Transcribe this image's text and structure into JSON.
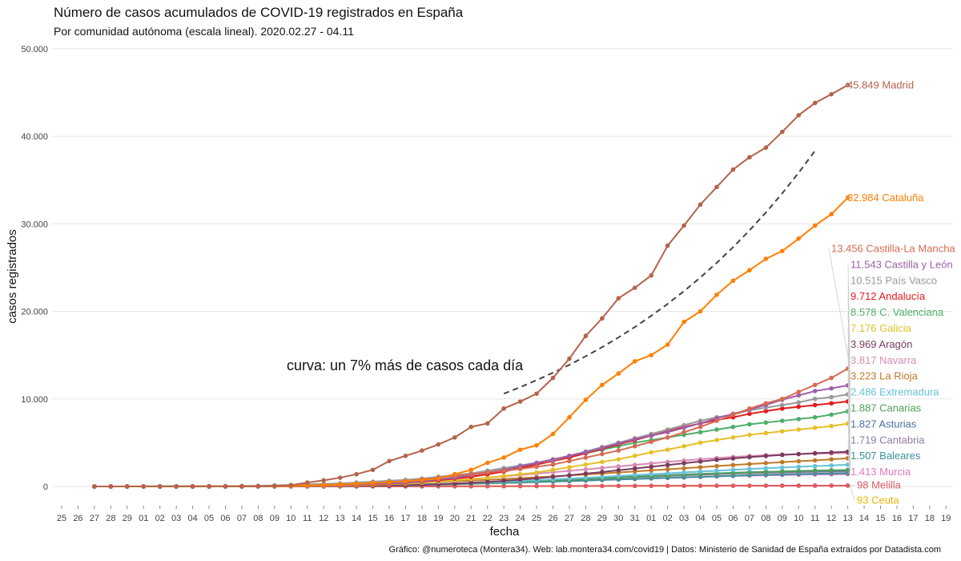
{
  "chart_data": {
    "type": "line",
    "title": "Número de casos acumulados de COVID-19 registrados en España",
    "subtitle": "Por comunidad autónoma (escala lineal). 2020.02.27 - 04.11",
    "xlabel": "fecha",
    "ylabel": "casos registrados",
    "caption": "Gráfico: @numeroteca (Montera34). Web: lab.montera34.com/covid19 | Datos: Ministerio de Sanidad de España extraídos por Datadista.com",
    "annotation": "curva: un 7% más de casos cada día",
    "x_dates": [
      "2020-02-25",
      "2020-02-26",
      "2020-02-27",
      "2020-02-28",
      "2020-02-29",
      "2020-03-01",
      "2020-03-02",
      "2020-03-03",
      "2020-03-04",
      "2020-03-05",
      "2020-03-06",
      "2020-03-07",
      "2020-03-08",
      "2020-03-09",
      "2020-03-10",
      "2020-03-11",
      "2020-03-12",
      "2020-03-13",
      "2020-03-14",
      "2020-03-15",
      "2020-03-16",
      "2020-03-17",
      "2020-03-18",
      "2020-03-19",
      "2020-03-20",
      "2020-03-21",
      "2020-03-22",
      "2020-03-23",
      "2020-03-24",
      "2020-03-25",
      "2020-03-26",
      "2020-03-27",
      "2020-03-28",
      "2020-03-29",
      "2020-03-30",
      "2020-03-31",
      "2020-04-01",
      "2020-04-02",
      "2020-04-03",
      "2020-04-04",
      "2020-04-05",
      "2020-04-06",
      "2020-04-07",
      "2020-04-08",
      "2020-04-09",
      "2020-04-10",
      "2020-04-11",
      "2020-04-12",
      "2020-04-13",
      "2020-04-14",
      "2020-04-15",
      "2020-04-16",
      "2020-04-17",
      "2020-04-18",
      "2020-04-19"
    ],
    "x_tick_labels": [
      "25",
      "26",
      "27",
      "28",
      "29",
      "01",
      "02",
      "03",
      "04",
      "05",
      "06",
      "07",
      "08",
      "09",
      "10",
      "11",
      "12",
      "13",
      "14",
      "15",
      "16",
      "17",
      "18",
      "19",
      "20",
      "21",
      "22",
      "23",
      "24",
      "25",
      "26",
      "27",
      "28",
      "29",
      "30",
      "31",
      "01",
      "02",
      "03",
      "04",
      "05",
      "06",
      "07",
      "08",
      "09",
      "10",
      "11",
      "12",
      "13",
      "14",
      "15",
      "16",
      "17",
      "18",
      "19"
    ],
    "y_ticks": [
      0,
      10000,
      20000,
      30000,
      40000,
      50000
    ],
    "y_tick_labels": [
      "0",
      "10.000",
      "20.000",
      "30.000",
      "40.000",
      "50.000"
    ],
    "ylim": [
      -1200,
      51000
    ],
    "grid": true,
    "legend": "direct labels at line ends (right)",
    "series_start_date": "2020-02-27",
    "series": [
      {
        "name": "Madrid",
        "label": "45.849 Madrid",
        "color": "#b5634b",
        "values": [
          1,
          5,
          6,
          6,
          8,
          10,
          12,
          15,
          17,
          29,
          40,
          80,
          150,
          450,
          700,
          1000,
          1400,
          1900,
          2900,
          3500,
          4100,
          4800,
          5600,
          6800,
          7200,
          8900,
          9700,
          10600,
          12400,
          14600,
          17200,
          19200,
          21500,
          22700,
          24100,
          27500,
          29800,
          32200,
          34200,
          36200,
          37600,
          38700,
          40500,
          42400,
          43800,
          44800,
          45849
        ]
      },
      {
        "name": "Cataluña",
        "label": "32.984 Cataluña",
        "color": "#ff7f00",
        "values": [
          1,
          2,
          3,
          4,
          5,
          5,
          6,
          10,
          12,
          18,
          30,
          50,
          75,
          120,
          170,
          240,
          300,
          400,
          500,
          600,
          750,
          900,
          1400,
          1900,
          2700,
          3300,
          4200,
          4700,
          6000,
          7900,
          9900,
          11600,
          12900,
          14300,
          15000,
          16200,
          18800,
          20000,
          21900,
          23500,
          24700,
          26000,
          26900,
          28300,
          29800,
          31100,
          32984
        ]
      },
      {
        "name": "Castilla-La Mancha",
        "label": "13.456 Castilla-La Mancha",
        "color": "#d86a52",
        "values": [
          0,
          0,
          0,
          0,
          0,
          1,
          2,
          3,
          5,
          8,
          12,
          20,
          40,
          70,
          120,
          200,
          280,
          390,
          500,
          600,
          800,
          1000,
          1200,
          1400,
          1600,
          1800,
          2000,
          2250,
          2500,
          2900,
          3300,
          3700,
          4100,
          4600,
          5100,
          5600,
          6200,
          6800,
          7500,
          8200,
          8900,
          9500,
          10000,
          10800,
          11600,
          12400,
          13456
        ]
      },
      {
        "name": "Castilla y León",
        "label": "11.543 Castilla y León",
        "color": "#a05fa6",
        "values": [
          0,
          0,
          0,
          0,
          0,
          0,
          1,
          2,
          4,
          6,
          10,
          15,
          30,
          50,
          90,
          150,
          220,
          300,
          380,
          450,
          600,
          800,
          1000,
          1300,
          1600,
          1900,
          2300,
          2700,
          3100,
          3500,
          3900,
          4400,
          4900,
          5400,
          5800,
          6200,
          6700,
          7200,
          7800,
          8300,
          8800,
          9300,
          9900,
          10400,
          10900,
          11200,
          11543
        ]
      },
      {
        "name": "País Vasco",
        "label": "10.515 País Vasco",
        "color": "#999999",
        "values": [
          0,
          0,
          0,
          2,
          4,
          6,
          10,
          15,
          30,
          50,
          80,
          120,
          170,
          250,
          300,
          350,
          450,
          550,
          650,
          750,
          900,
          1100,
          1300,
          1500,
          1800,
          2100,
          2400,
          2700,
          3000,
          3500,
          4000,
          4500,
          5000,
          5500,
          6000,
          6500,
          7000,
          7500,
          7900,
          8200,
          8700,
          9000,
          9300,
          9600,
          10000,
          10200,
          10515
        ]
      },
      {
        "name": "Andalucía",
        "label": "9.712 Andalucía",
        "color": "#e41a1c",
        "values": [
          0,
          0,
          0,
          0,
          0,
          1,
          2,
          5,
          10,
          15,
          20,
          30,
          50,
          80,
          110,
          150,
          200,
          260,
          330,
          420,
          550,
          700,
          900,
          1100,
          1400,
          1700,
          2100,
          2500,
          2900,
          3300,
          3800,
          4300,
          4800,
          5300,
          5800,
          6300,
          6800,
          7200,
          7600,
          7900,
          8300,
          8600,
          8900,
          9100,
          9300,
          9500,
          9712
        ]
      },
      {
        "name": "C. Valenciana",
        "label": "8.578 C. Valenciana",
        "color": "#4daf6a",
        "values": [
          1,
          2,
          3,
          5,
          7,
          10,
          15,
          20,
          25,
          30,
          40,
          50,
          80,
          110,
          150,
          200,
          250,
          350,
          500,
          650,
          800,
          1000,
          1200,
          1400,
          1600,
          1900,
          2200,
          2600,
          3000,
          3400,
          3800,
          4200,
          4600,
          5000,
          5300,
          5600,
          5900,
          6200,
          6500,
          6800,
          7100,
          7300,
          7500,
          7700,
          7900,
          8200,
          8578
        ]
      },
      {
        "name": "Galicia",
        "label": "7.176 Galicia",
        "color": "#e5c02a",
        "values": [
          0,
          0,
          0,
          0,
          0,
          0,
          1,
          2,
          3,
          5,
          8,
          12,
          20,
          40,
          60,
          90,
          130,
          180,
          250,
          330,
          420,
          550,
          700,
          850,
          1000,
          1200,
          1400,
          1600,
          1900,
          2200,
          2500,
          2800,
          3100,
          3500,
          3900,
          4200,
          4600,
          5000,
          5300,
          5600,
          5900,
          6100,
          6300,
          6500,
          6700,
          6900,
          7176
        ]
      },
      {
        "name": "Aragón",
        "label": "3.969 Aragón",
        "color": "#7a3b5e",
        "values": [
          0,
          0,
          0,
          0,
          0,
          1,
          1,
          2,
          2,
          3,
          5,
          8,
          12,
          20,
          30,
          45,
          60,
          80,
          110,
          150,
          200,
          260,
          330,
          420,
          520,
          640,
          780,
          930,
          1100,
          1280,
          1470,
          1650,
          1850,
          2050,
          2250,
          2450,
          2650,
          2850,
          3050,
          3200,
          3350,
          3480,
          3600,
          3700,
          3800,
          3880,
          3969
        ]
      },
      {
        "name": "Navarra",
        "label": "3.817 Navarra",
        "color": "#d98cb3",
        "values": [
          0,
          0,
          0,
          1,
          2,
          3,
          5,
          8,
          12,
          18,
          25,
          35,
          50,
          70,
          100,
          140,
          190,
          250,
          320,
          400,
          500,
          610,
          730,
          860,
          1000,
          1150,
          1300,
          1460,
          1620,
          1780,
          1950,
          2120,
          2290,
          2460,
          2630,
          2800,
          2960,
          3100,
          3250,
          3370,
          3480,
          3570,
          3640,
          3700,
          3750,
          3790,
          3817
        ]
      },
      {
        "name": "La Rioja",
        "label": "3.223 La Rioja",
        "color": "#c07a28",
        "values": [
          0,
          0,
          0,
          0,
          0,
          1,
          3,
          6,
          10,
          20,
          35,
          55,
          80,
          110,
          150,
          190,
          240,
          290,
          340,
          400,
          460,
          530,
          600,
          680,
          760,
          850,
          950,
          1050,
          1150,
          1260,
          1370,
          1480,
          1600,
          1720,
          1840,
          1960,
          2080,
          2200,
          2330,
          2450,
          2560,
          2670,
          2780,
          2880,
          2980,
          3100,
          3223
        ]
      },
      {
        "name": "Extremadura",
        "label": "2.486 Extremadura",
        "color": "#67c1d9",
        "values": [
          0,
          0,
          0,
          0,
          0,
          1,
          2,
          3,
          5,
          8,
          12,
          18,
          25,
          35,
          50,
          70,
          90,
          120,
          150,
          190,
          230,
          280,
          340,
          400,
          470,
          550,
          630,
          720,
          810,
          900,
          1000,
          1100,
          1200,
          1300,
          1400,
          1500,
          1600,
          1700,
          1800,
          1900,
          2000,
          2080,
          2160,
          2240,
          2320,
          2400,
          2486
        ]
      },
      {
        "name": "Canarias",
        "label": "1.887 Canarias",
        "color": "#4e9e5a",
        "values": [
          1,
          2,
          3,
          5,
          6,
          7,
          8,
          9,
          10,
          11,
          13,
          15,
          20,
          30,
          40,
          60,
          80,
          100,
          130,
          160,
          200,
          250,
          300,
          360,
          420,
          490,
          560,
          630,
          700,
          780,
          860,
          940,
          1020,
          1100,
          1180,
          1260,
          1340,
          1420,
          1490,
          1550,
          1610,
          1670,
          1720,
          1770,
          1810,
          1850,
          1887
        ]
      },
      {
        "name": "Asturias",
        "label": "1.827 Asturias",
        "color": "#4a6fa8",
        "values": [
          0,
          0,
          0,
          0,
          0,
          1,
          2,
          4,
          6,
          10,
          15,
          20,
          30,
          40,
          55,
          75,
          100,
          130,
          160,
          200,
          240,
          290,
          340,
          400,
          460,
          520,
          590,
          660,
          730,
          800,
          880,
          960,
          1040,
          1120,
          1200,
          1280,
          1360,
          1430,
          1500,
          1560,
          1620,
          1670,
          1710,
          1750,
          1780,
          1800,
          1827
        ]
      },
      {
        "name": "Cantabria",
        "label": "1.719 Cantabria",
        "color": "#8e7a9e",
        "values": [
          0,
          0,
          0,
          0,
          0,
          0,
          1,
          2,
          4,
          6,
          10,
          15,
          25,
          35,
          50,
          70,
          90,
          120,
          150,
          190,
          230,
          280,
          330,
          390,
          450,
          510,
          570,
          640,
          710,
          780,
          850,
          920,
          990,
          1060,
          1130,
          1200,
          1270,
          1340,
          1400,
          1460,
          1510,
          1560,
          1600,
          1640,
          1670,
          1695,
          1719
        ]
      },
      {
        "name": "Baleares",
        "label": "1.507 Baleares",
        "color": "#3b8f9a",
        "values": [
          2,
          3,
          4,
          5,
          6,
          7,
          8,
          9,
          10,
          12,
          15,
          20,
          25,
          35,
          45,
          60,
          80,
          100,
          120,
          150,
          180,
          220,
          260,
          310,
          360,
          410,
          460,
          510,
          560,
          620,
          680,
          740,
          800,
          860,
          920,
          980,
          1040,
          1100,
          1160,
          1220,
          1280,
          1330,
          1380,
          1420,
          1450,
          1480,
          1507
        ]
      },
      {
        "name": "Murcia",
        "label": "1.413 Murcia",
        "color": "#e377c2",
        "values": [
          0,
          0,
          0,
          0,
          0,
          0,
          1,
          2,
          4,
          6,
          10,
          15,
          20,
          30,
          40,
          55,
          70,
          90,
          110,
          140,
          170,
          210,
          250,
          300,
          350,
          400,
          450,
          500,
          560,
          620,
          680,
          740,
          800,
          860,
          920,
          980,
          1040,
          1100,
          1150,
          1200,
          1240,
          1280,
          1310,
          1340,
          1370,
          1390,
          1413
        ]
      },
      {
        "name": "Melilla",
        "label": "98 Melilla",
        "color": "#e05a65",
        "values": [
          0,
          0,
          0,
          0,
          0,
          0,
          0,
          0,
          0,
          0,
          0,
          1,
          1,
          2,
          3,
          4,
          5,
          6,
          8,
          10,
          13,
          16,
          20,
          25,
          30,
          35,
          40,
          45,
          50,
          55,
          60,
          64,
          68,
          72,
          75,
          78,
          81,
          84,
          86,
          88,
          90,
          92,
          93,
          94,
          95,
          96,
          98
        ]
      },
      {
        "name": "Ceuta",
        "label": "93 Ceuta",
        "color": "#f0b400",
        "values": [
          0,
          0,
          0,
          0,
          0,
          0,
          0,
          0,
          0,
          0,
          0,
          0,
          0,
          1,
          1,
          2,
          3,
          4,
          5,
          6,
          8,
          10,
          12,
          15,
          18,
          22,
          26,
          30,
          35,
          40,
          45,
          50,
          55,
          60,
          64,
          68,
          72,
          75,
          78,
          81,
          83,
          85,
          87,
          89,
          90,
          92,
          93
        ]
      }
    ],
    "reference_curve": {
      "name": "7% diario",
      "color": "#444444",
      "dashed": true,
      "x_dates": [
        "2020-03-23",
        "2020-03-24",
        "2020-03-25",
        "2020-03-26",
        "2020-03-27",
        "2020-03-28",
        "2020-03-29",
        "2020-03-30",
        "2020-03-31",
        "2020-04-01",
        "2020-04-02",
        "2020-04-03",
        "2020-04-04",
        "2020-04-05",
        "2020-04-06",
        "2020-04-07",
        "2020-04-08",
        "2020-04-09",
        "2020-04-10",
        "2020-04-11"
      ],
      "values": [
        10600,
        11340,
        12140,
        12990,
        13890,
        14870,
        15910,
        17020,
        18210,
        19490,
        20850,
        22310,
        23870,
        25540,
        27330,
        29250,
        31290,
        33480,
        35830,
        38340
      ]
    }
  }
}
